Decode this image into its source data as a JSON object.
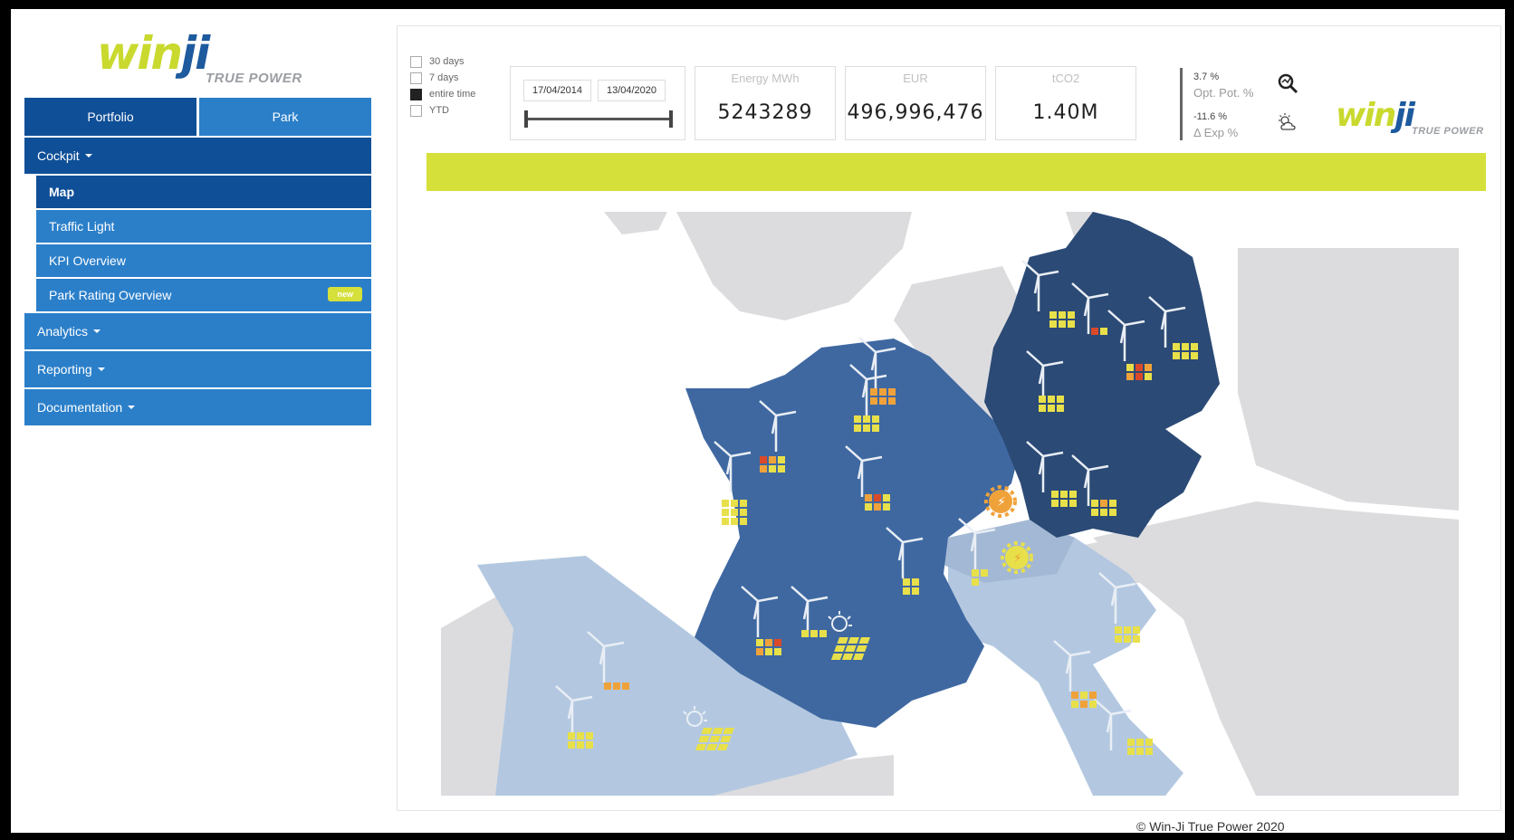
{
  "brand": {
    "word_a": "win",
    "word_b": "ji",
    "tagline": "TRUE POWER",
    "green": "#c9d92e",
    "blue": "#1d5a9e"
  },
  "tabs": [
    {
      "label": "Portfolio",
      "active": true
    },
    {
      "label": "Park",
      "active": false
    }
  ],
  "menu": {
    "cockpit": "Cockpit",
    "map": "Map",
    "traffic_light": "Traffic Light",
    "kpi_overview": "KPI Overview",
    "park_rating": "Park Rating Overview",
    "new_badge": "new",
    "analytics": "Analytics",
    "reporting": "Reporting",
    "documentation": "Documentation"
  },
  "filters": [
    {
      "label": "30 days",
      "checked": false
    },
    {
      "label": "7 days",
      "checked": false
    },
    {
      "label": "entire time",
      "checked": true
    },
    {
      "label": "YTD",
      "checked": false
    }
  ],
  "date_range": {
    "start": "17/04/2014",
    "end": "13/04/2020"
  },
  "kpis": [
    {
      "label": "Energy MWh",
      "value": "5243289"
    },
    {
      "label": "EUR",
      "value": "496,996,476"
    },
    {
      "label": "tCO2",
      "value": "1.40M"
    }
  ],
  "stats": {
    "opt_value": "3.7 %",
    "opt_label": "Opt. Pot. %",
    "exp_value": "-11.6 %",
    "exp_label": "Δ Exp %"
  },
  "colors": {
    "accent_yellow": "#d6e03a",
    "nav_dark": "#0f4f97",
    "nav_light": "#2b7fc9",
    "germany": "#2b4a75",
    "france": "#3f68a1",
    "spain_italy": "#b3c8e0",
    "other_land": "#dcdcdf"
  },
  "map_icons": [
    "wind-turbine-icon",
    "solar-panel-icon",
    "status-grid-icon",
    "warning-gear-icon"
  ],
  "footer": "© Win-Ji True Power 2020"
}
